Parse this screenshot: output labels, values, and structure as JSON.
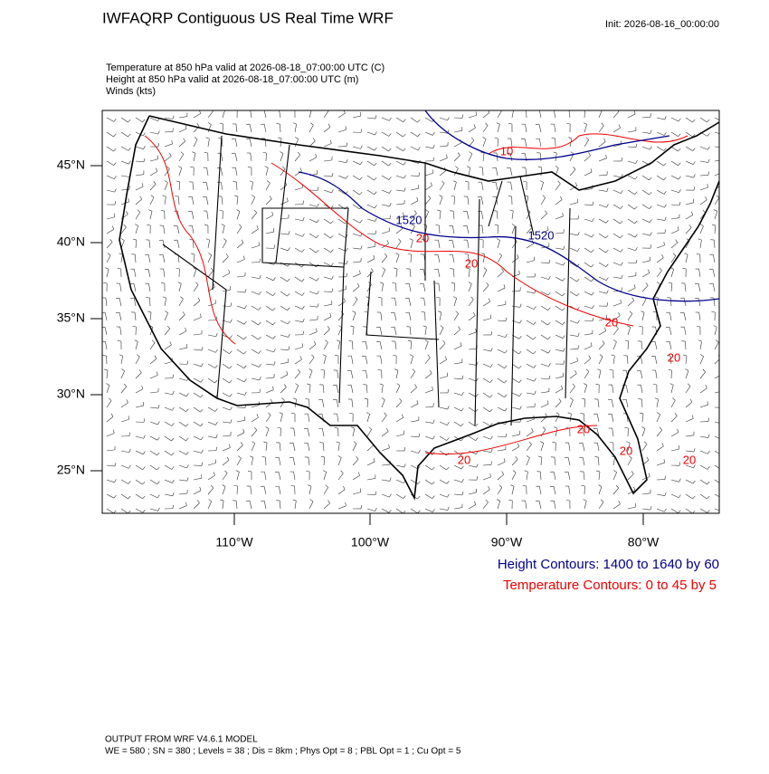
{
  "header": {
    "title": "IWFAQRP Contiguous US Real Time WRF",
    "init": "Init: 2026-08-16_00:00:00"
  },
  "fields": [
    "Temperature at 850 hPa valid at 2026-08-18_07:00:00 UTC   (C)",
    "Height at 850 hPa valid at 2026-08-18_07:00:00 UTC   (m)",
    "Winds   (kts)"
  ],
  "map": {
    "lat_labels": [
      "45°N",
      "40°N",
      "35°N",
      "30°N",
      "25°N"
    ],
    "lon_labels": [
      "110°W",
      "100°W",
      "90°W",
      "80°W"
    ],
    "height_labels": [
      "1520",
      "1520"
    ],
    "temperature_labels": [
      "10",
      "20",
      "20",
      "20",
      "20",
      "20",
      "20",
      "20",
      "20"
    ]
  },
  "legend": {
    "height": "Height Contours: 1400 to 1640 by 60",
    "temperature": "Temperature Contours: 0 to 45 by 5"
  },
  "footer": {
    "model": "OUTPUT FROM WRF V4.6.1 MODEL",
    "settings": "WE = 580 ; SN = 380 ; Levels = 38 ; Dis = 8km ; Phys Opt = 8 ; PBL Opt = 1 ; Cu Opt = 5"
  }
}
